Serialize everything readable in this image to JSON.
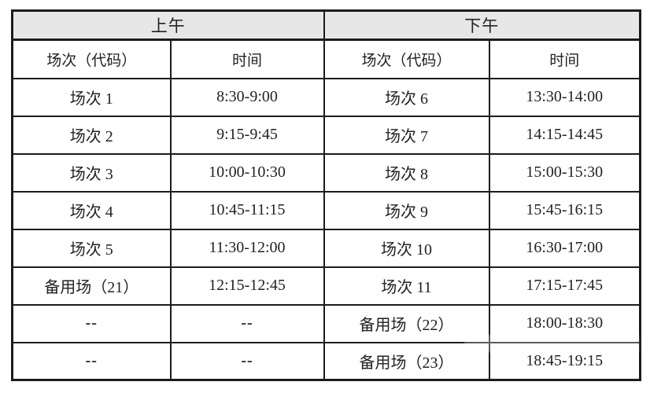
{
  "page": {
    "background_color": "#ffffff",
    "text_color": "#222222",
    "border_color": "#1c1c1c",
    "header_bg_color": "#e7e7e7"
  },
  "table": {
    "groups": [
      {
        "label": "上午"
      },
      {
        "label": "下午"
      }
    ],
    "columns": [
      {
        "label": "场次（代码）"
      },
      {
        "label": "时间"
      },
      {
        "label": "场次（代码）"
      },
      {
        "label": "时间"
      }
    ],
    "rows": [
      {
        "cells": [
          "场次 1",
          "8:30-9:00",
          "场次 6",
          "13:30-14:00"
        ]
      },
      {
        "cells": [
          "场次 2",
          "9:15-9:45",
          "场次 7",
          "14:15-14:45"
        ]
      },
      {
        "cells": [
          "场次 3",
          "10:00-10:30",
          "场次 8",
          "15:00-15:30"
        ]
      },
      {
        "cells": [
          "场次 4",
          "10:45-11:15",
          "场次 9",
          "15:45-16:15"
        ]
      },
      {
        "cells": [
          "场次 5",
          "11:30-12:00",
          "场次 10",
          "16:30-17:00"
        ]
      },
      {
        "cells": [
          "备用场（21）",
          "12:15-12:45",
          "场次 11",
          "17:15-17:45"
        ]
      },
      {
        "cells": [
          "--",
          "--",
          "备用场（22）",
          "18:00-18:30"
        ]
      },
      {
        "cells": [
          "--",
          "--",
          "备用场（23）",
          "18:45-19:15"
        ]
      }
    ]
  }
}
